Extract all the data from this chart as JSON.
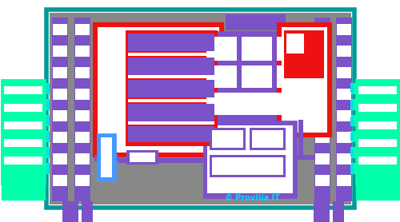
{
  "bg_color": "#ffffff",
  "teal": "#009999",
  "purple": "#7B52C8",
  "red": "#EE1111",
  "cyan": "#00DDFF",
  "green": "#00FFAA",
  "blue": "#4499FF",
  "gray": "#888888",
  "white": "#ffffff"
}
